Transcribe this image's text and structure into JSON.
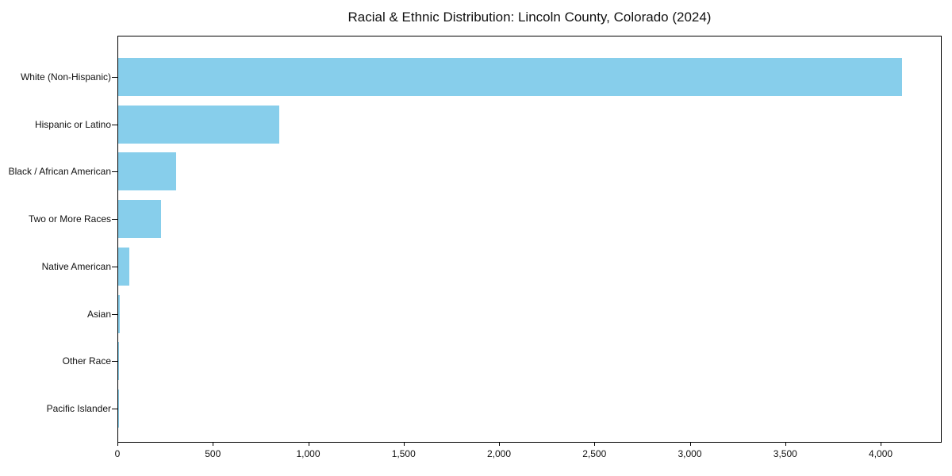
{
  "chart_data": {
    "type": "bar",
    "orientation": "horizontal",
    "title": "Racial & Ethnic Distribution: Lincoln County, Colorado (2024)",
    "categories": [
      "White (Non-Hispanic)",
      "Hispanic or Latino",
      "Black / African American",
      "Two or More Races",
      "Native American",
      "Asian",
      "Other Race",
      "Pacific Islander"
    ],
    "values": [
      4110,
      845,
      305,
      225,
      60,
      10,
      4,
      2
    ],
    "xlabel": "",
    "ylabel": "",
    "xlim": [
      0,
      4320
    ],
    "xticks": [
      0,
      500,
      1000,
      1500,
      2000,
      2500,
      3000,
      3500,
      4000
    ],
    "xtick_labels": [
      "0",
      "500",
      "1,000",
      "1,500",
      "2,000",
      "2,500",
      "3,000",
      "3,500",
      "4,000"
    ],
    "bar_color": "#87CEEB",
    "grid": false,
    "legend": null
  }
}
